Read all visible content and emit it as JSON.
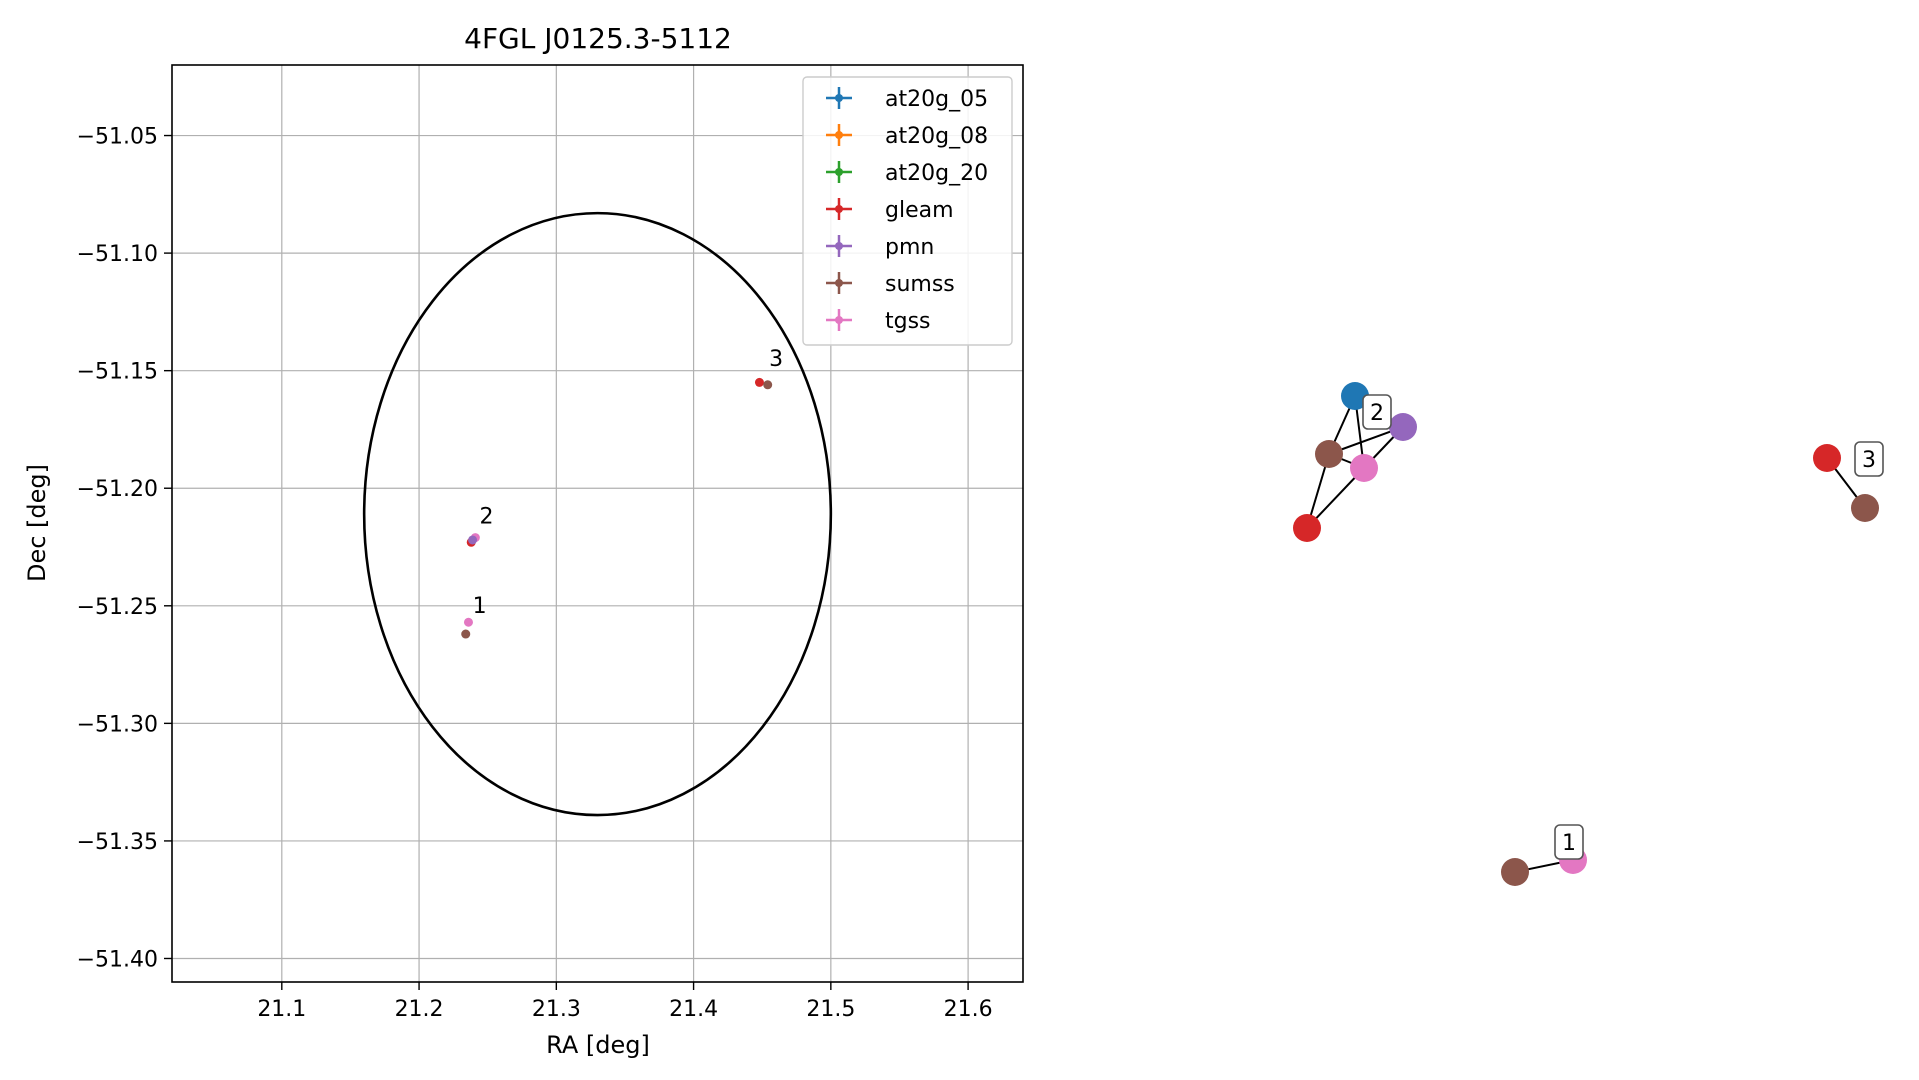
{
  "chart_data": [
    {
      "type": "scatter",
      "title": "4FGL J0125.3-5112",
      "xlabel": "RA [deg]",
      "ylabel": "Dec [deg]",
      "xlim": [
        21.02,
        21.64
      ],
      "ylim": [
        -51.41,
        -51.02
      ],
      "xticks": [
        21.1,
        21.2,
        21.3,
        21.4,
        21.5,
        21.6
      ],
      "xtick_labels": [
        "21.1",
        "21.2",
        "21.3",
        "21.4",
        "21.5",
        "21.6"
      ],
      "yticks": [
        -51.05,
        -51.1,
        -51.15,
        -51.2,
        -51.25,
        -51.3,
        -51.35,
        -51.4
      ],
      "ytick_labels": [
        "−51.05",
        "−51.10",
        "−51.15",
        "−51.20",
        "−51.25",
        "−51.30",
        "−51.35",
        "−51.40"
      ],
      "grid": true,
      "legend_position": "top-right",
      "legend": [
        {
          "label": "at20g_05",
          "color": "#1f77b4"
        },
        {
          "label": "at20g_08",
          "color": "#ff7f0e"
        },
        {
          "label": "at20g_20",
          "color": "#2ca02c"
        },
        {
          "label": "gleam",
          "color": "#d62728"
        },
        {
          "label": "pmn",
          "color": "#9467bd"
        },
        {
          "label": "sumss",
          "color": "#8c564b"
        },
        {
          "label": "tgss",
          "color": "#e377c2"
        }
      ],
      "ellipse": {
        "center_ra": 21.33,
        "center_dec": -51.211,
        "semi_major_ra": 0.17,
        "semi_minor_dec": 0.128,
        "color": "#000000"
      },
      "points": [
        {
          "catalog": "gleam",
          "ra": 21.448,
          "dec": -51.155,
          "color": "#d62728"
        },
        {
          "catalog": "sumss",
          "ra": 21.454,
          "dec": -51.156,
          "color": "#8c564b"
        },
        {
          "catalog": "gleam",
          "ra": 21.238,
          "dec": -51.223,
          "color": "#d62728"
        },
        {
          "catalog": "tgss",
          "ra": 21.241,
          "dec": -51.221,
          "color": "#e377c2"
        },
        {
          "catalog": "pmn",
          "ra": 21.239,
          "dec": -51.222,
          "color": "#9467bd"
        },
        {
          "catalog": "tgss",
          "ra": 21.236,
          "dec": -51.257,
          "color": "#e377c2"
        },
        {
          "catalog": "sumss",
          "ra": 21.234,
          "dec": -51.262,
          "color": "#8c564b"
        }
      ],
      "group_labels": [
        {
          "label": "3",
          "ra": 21.455,
          "dec": -51.148
        },
        {
          "label": "2",
          "ra": 21.244,
          "dec": -51.215
        },
        {
          "label": "1",
          "ra": 21.239,
          "dec": -51.253
        }
      ]
    },
    {
      "type": "network",
      "nodes": [
        {
          "id": "n_at20g",
          "color": "#1f77b4"
        },
        {
          "id": "n_pmn",
          "color": "#9467bd"
        },
        {
          "id": "n_sumss2",
          "color": "#8c564b"
        },
        {
          "id": "n_tgss2",
          "color": "#e377c2"
        },
        {
          "id": "n_gleam2",
          "color": "#d62728"
        },
        {
          "id": "n_gleam3",
          "color": "#d62728"
        },
        {
          "id": "n_sumss3",
          "color": "#8c564b"
        },
        {
          "id": "n_sumss1",
          "color": "#8c564b"
        },
        {
          "id": "n_tgss1",
          "color": "#e377c2"
        }
      ],
      "edges": [
        [
          "n_at20g",
          "n_sumss2"
        ],
        [
          "n_at20g",
          "n_tgss2"
        ],
        [
          "n_at20g",
          "n_pmn"
        ],
        [
          "n_sumss2",
          "n_pmn"
        ],
        [
          "n_sumss2",
          "n_tgss2"
        ],
        [
          "n_sumss2",
          "n_gleam2"
        ],
        [
          "n_tgss2",
          "n_gleam2"
        ],
        [
          "n_tgss2",
          "n_pmn"
        ],
        [
          "n_gleam3",
          "n_sumss3"
        ],
        [
          "n_sumss1",
          "n_tgss1"
        ]
      ],
      "labels": [
        "2",
        "3",
        "1"
      ]
    }
  ]
}
